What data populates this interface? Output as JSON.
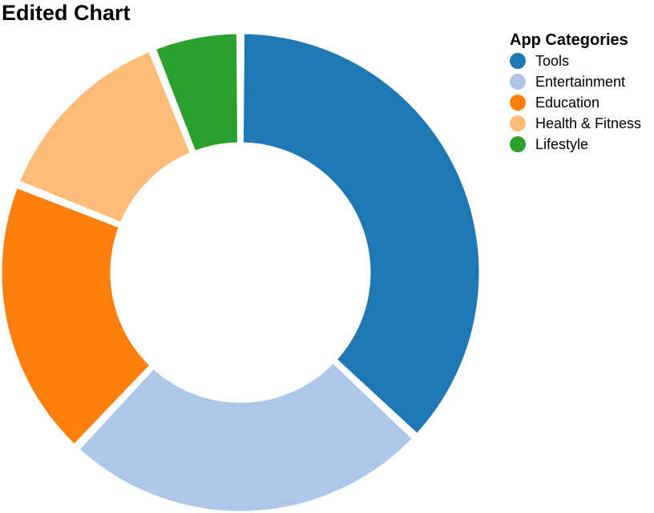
{
  "chart_data": {
    "type": "pie",
    "variant": "donut",
    "title": "Edited Chart",
    "legend": {
      "title": "App Categories",
      "position": "top-right"
    },
    "categories": [
      "Tools",
      "Entertainment",
      "Education",
      "Health & Fitness",
      "Lifestyle"
    ],
    "values": [
      37,
      25,
      19,
      13,
      6
    ],
    "colors": [
      "#1f77b4",
      "#aec7e8",
      "#ff7f0e",
      "#ffbb78",
      "#2ca02c"
    ]
  }
}
